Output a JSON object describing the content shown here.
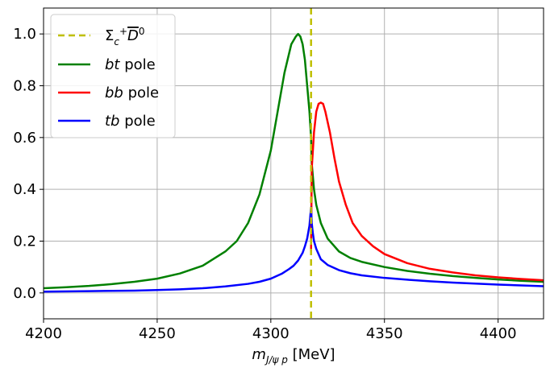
{
  "chart_data": {
    "type": "line",
    "title": "",
    "xlabel_parts": {
      "main": "m",
      "sub": "J/ψ p",
      "unit": " [MeV]"
    },
    "ylabel": "",
    "xlim": [
      4200,
      4420
    ],
    "ylim": [
      -0.1,
      1.1
    ],
    "grid": true,
    "legend_position": "top-left",
    "xticks": [
      4200,
      4250,
      4300,
      4350,
      4400
    ],
    "xtick_labels": [
      "4200",
      "4250",
      "4300",
      "4350",
      "4400"
    ],
    "yticks": [
      0.0,
      0.2,
      0.4,
      0.6,
      0.8,
      1.0
    ],
    "ytick_labels": [
      "0.0",
      "0.2",
      "0.4",
      "0.6",
      "0.8",
      "1.0"
    ],
    "threshold": {
      "name": "Σc+ D̄0",
      "x": 4317.7,
      "color": "#bfbf00",
      "style": "dashed"
    },
    "series": [
      {
        "name": "bt pole",
        "label_italic": "bt",
        "label_rest": " pole",
        "color": "#008000",
        "x": [
          4200,
          4210,
          4220,
          4230,
          4240,
          4250,
          4260,
          4270,
          4280,
          4285,
          4290,
          4295,
          4300,
          4303,
          4306,
          4309,
          4311,
          4312,
          4313,
          4314,
          4315,
          4316,
          4317,
          4317.7,
          4318,
          4319,
          4320,
          4322,
          4325,
          4330,
          4335,
          4340,
          4350,
          4360,
          4370,
          4380,
          4390,
          4400,
          4410,
          4420
        ],
        "y": [
          0.018,
          0.022,
          0.027,
          0.034,
          0.043,
          0.055,
          0.075,
          0.105,
          0.16,
          0.2,
          0.27,
          0.38,
          0.55,
          0.7,
          0.85,
          0.96,
          0.99,
          1.0,
          0.99,
          0.96,
          0.9,
          0.8,
          0.7,
          0.6,
          0.5,
          0.4,
          0.34,
          0.27,
          0.21,
          0.16,
          0.135,
          0.12,
          0.1,
          0.085,
          0.074,
          0.065,
          0.058,
          0.052,
          0.047,
          0.043
        ]
      },
      {
        "name": "bb pole",
        "label_italic": "bb",
        "label_rest": " pole",
        "color": "#ff0000",
        "x": [
          4317.7,
          4318,
          4319,
          4320,
          4321,
          4322,
          4323,
          4324,
          4326,
          4328,
          4330,
          4333,
          4336,
          4340,
          4345,
          4350,
          4360,
          4370,
          4380,
          4390,
          4400,
          4410,
          4420
        ],
        "y": [
          0.16,
          0.48,
          0.62,
          0.7,
          0.73,
          0.735,
          0.73,
          0.7,
          0.62,
          0.52,
          0.43,
          0.34,
          0.27,
          0.22,
          0.18,
          0.15,
          0.115,
          0.093,
          0.079,
          0.068,
          0.06,
          0.054,
          0.049
        ]
      },
      {
        "name": "tb pole",
        "label_italic": "tb",
        "label_rest": " pole",
        "color": "#0000ff",
        "x": [
          4200,
          4220,
          4240,
          4250,
          4260,
          4270,
          4280,
          4290,
          4295,
          4300,
          4305,
          4308,
          4310,
          4312,
          4314,
          4315,
          4316,
          4317,
          4317.4,
          4317.7,
          4318,
          4318.5,
          4319,
          4320,
          4322,
          4325,
          4330,
          4335,
          4340,
          4350,
          4360,
          4370,
          4380,
          4390,
          4400,
          4410,
          4420
        ],
        "y": [
          0.005,
          0.007,
          0.009,
          0.011,
          0.014,
          0.018,
          0.025,
          0.035,
          0.043,
          0.055,
          0.075,
          0.092,
          0.105,
          0.125,
          0.155,
          0.18,
          0.21,
          0.26,
          0.3,
          0.33,
          0.27,
          0.23,
          0.2,
          0.17,
          0.13,
          0.108,
          0.088,
          0.076,
          0.068,
          0.058,
          0.051,
          0.045,
          0.04,
          0.036,
          0.032,
          0.029,
          0.026
        ]
      }
    ]
  }
}
